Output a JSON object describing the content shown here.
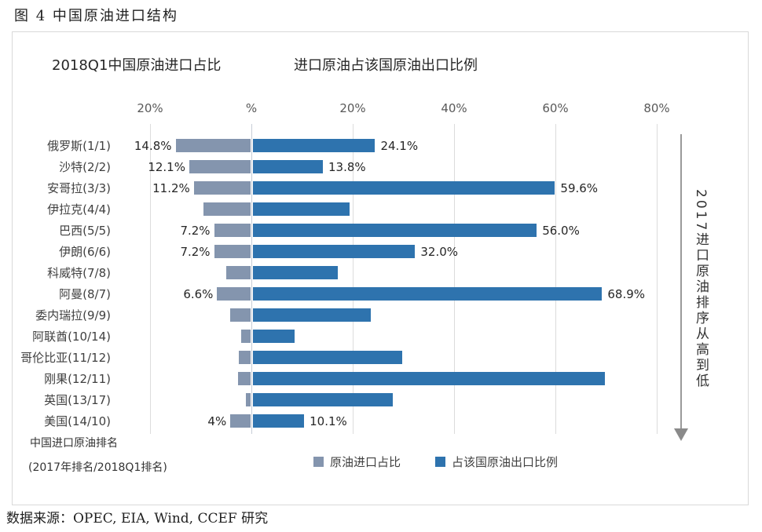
{
  "figure": {
    "title": "图 4  中国原油进口结构"
  },
  "panel": {
    "subtitle_left": "2018Q1中国原油进口占比",
    "subtitle_right": "进口原油占该国原油出口比例",
    "side_note": "2017进口原油排序从高到低",
    "footnote_line1": "中国进口原油排名",
    "footnote_line2": "(2017年排名/2018Q1排名)"
  },
  "legend": {
    "items": [
      {
        "label": "原油进口占比",
        "color": "#8495AE"
      },
      {
        "label": "占该国原油出口比例",
        "color": "#2E73AE"
      }
    ]
  },
  "source": "数据来源：OPEC, EIA, Wind, CCEF 研究",
  "chart_data": {
    "type": "bar",
    "variant": "diverging-horizontal",
    "title": "图 4  中国原油进口结构",
    "left_axis_title": "2018Q1中国原油进口占比",
    "right_axis_title": "进口原油占该国原油出口比例",
    "axis": {
      "ticks": [
        {
          "label": "20%",
          "value": -20
        },
        {
          "label": "%",
          "value": 0
        },
        {
          "label": "20%",
          "value": 20
        },
        {
          "label": "40%",
          "value": 40
        },
        {
          "label": "60%",
          "value": 60
        },
        {
          "label": "80%",
          "value": 80
        }
      ],
      "range_left_percent": 20,
      "range_right_percent": 80,
      "grid": true
    },
    "categories": [
      "俄罗斯(1/1)",
      "沙特(2/2)",
      "安哥拉(3/3)",
      "伊拉克(4/4)",
      "巴西(5/5)",
      "伊朗(6/6)",
      "科威特(7/8)",
      "阿曼(8/7)",
      "委内瑞拉(9/9)",
      "阿联酋(10/14)",
      "哥伦比亚(11/12)",
      "刚果(12/11)",
      "英国(13/17)",
      "美国(14/10)"
    ],
    "series": [
      {
        "name": "原油进口占比",
        "side": "left",
        "color": "#8495AE",
        "values": [
          14.8,
          12.1,
          11.2,
          9.3,
          7.2,
          7.2,
          4.8,
          6.6,
          4.1,
          1.9,
          2.3,
          2.5,
          0.9,
          4.0
        ],
        "labels": [
          "14.8%",
          "12.1%",
          "11.2%",
          "",
          "7.2%",
          "7.2%",
          "",
          "6.6%",
          "",
          "",
          "",
          "",
          "",
          "4%"
        ]
      },
      {
        "name": "占该国原油出口比例",
        "side": "right",
        "color": "#2E73AE",
        "values": [
          24.1,
          13.8,
          59.6,
          19.0,
          56.0,
          32.0,
          16.8,
          68.9,
          23.3,
          8.2,
          29.5,
          69.5,
          27.6,
          10.1
        ],
        "labels": [
          "24.1%",
          "13.8%",
          "59.6%",
          "",
          "56.0%",
          "32.0%",
          "",
          "68.9%",
          "",
          "",
          "",
          "",
          "",
          "10.1%"
        ]
      }
    ],
    "ordering_note": "2017进口原油排序从高到低",
    "ranking_note": "中国进口原油排名 (2017年排名/2018Q1排名)",
    "source": "数据来源：OPEC, EIA, Wind, CCEF 研究",
    "legend_position": "bottom"
  }
}
